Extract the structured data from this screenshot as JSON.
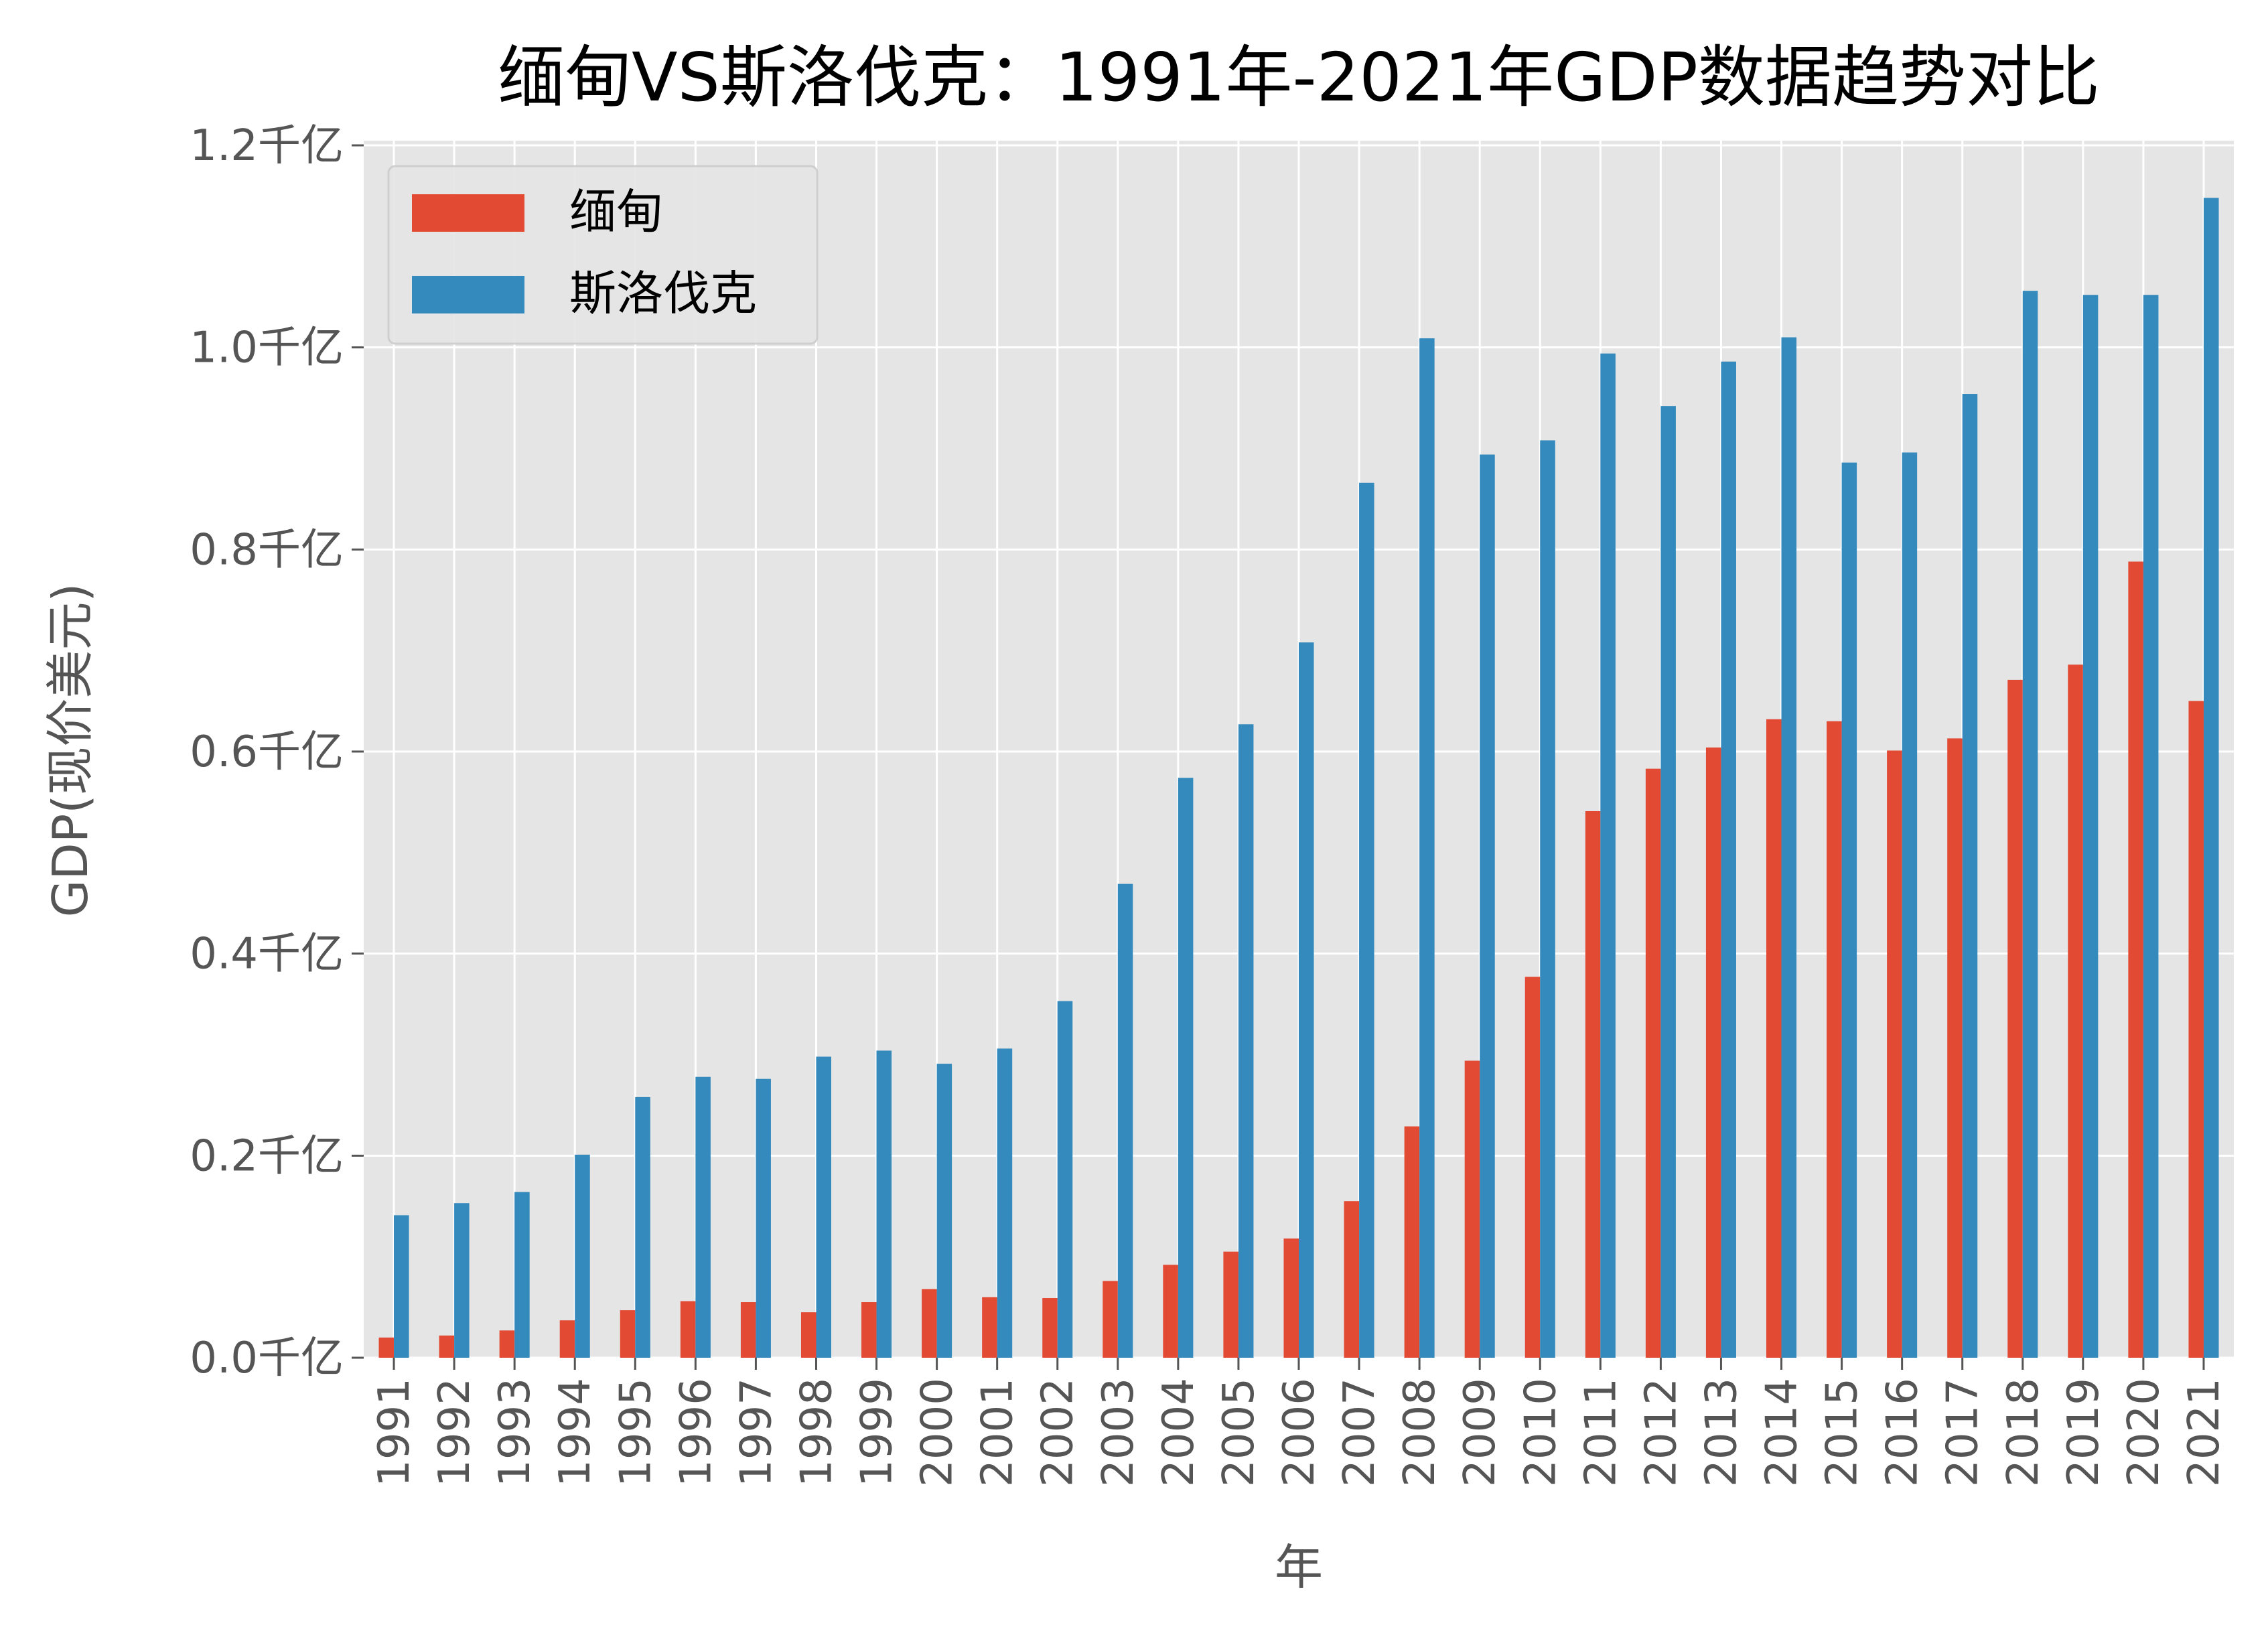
{
  "chart_data": {
    "type": "bar",
    "title": "缅甸VS斯洛伐克：1991年-2021年GDP数据趋势对比",
    "xlabel": "年",
    "ylabel": "GDP(现价美元)",
    "ylim": [
      0,
      1.2
    ],
    "yticks": [
      0,
      0.2,
      0.4,
      0.6,
      0.8,
      1.0,
      1.2
    ],
    "ytick_labels": [
      "0.0千亿",
      "0.2千亿",
      "0.4千亿",
      "0.6千亿",
      "0.8千亿",
      "1.0千亿",
      "1.2千亿"
    ],
    "grid": true,
    "legend_position": "top-left",
    "background": "#E5E5E5",
    "categories": [
      "1991",
      "1992",
      "1993",
      "1994",
      "1995",
      "1996",
      "1997",
      "1998",
      "1999",
      "2000",
      "2001",
      "2002",
      "2003",
      "2004",
      "2005",
      "2006",
      "2007",
      "2008",
      "2009",
      "2010",
      "2011",
      "2012",
      "2013",
      "2014",
      "2015",
      "2016",
      "2017",
      "2018",
      "2019",
      "2020",
      "2021"
    ],
    "series": [
      {
        "name": "缅甸",
        "color": "#E24A33",
        "values": [
          0.02,
          0.022,
          0.027,
          0.037,
          0.047,
          0.056,
          0.055,
          0.045,
          0.055,
          0.068,
          0.06,
          0.059,
          0.076,
          0.092,
          0.105,
          0.118,
          0.155,
          0.229,
          0.294,
          0.377,
          0.541,
          0.583,
          0.604,
          0.632,
          0.63,
          0.601,
          0.613,
          0.671,
          0.686,
          0.788,
          0.65
        ]
      },
      {
        "name": "斯洛伐克",
        "color": "#348ABD",
        "values": [
          0.141,
          0.153,
          0.164,
          0.201,
          0.258,
          0.278,
          0.276,
          0.298,
          0.304,
          0.291,
          0.306,
          0.353,
          0.469,
          0.574,
          0.627,
          0.708,
          0.866,
          1.009,
          0.894,
          0.908,
          0.994,
          0.942,
          0.986,
          1.01,
          0.886,
          0.896,
          0.954,
          1.056,
          1.052,
          1.052,
          1.148
        ]
      }
    ]
  }
}
